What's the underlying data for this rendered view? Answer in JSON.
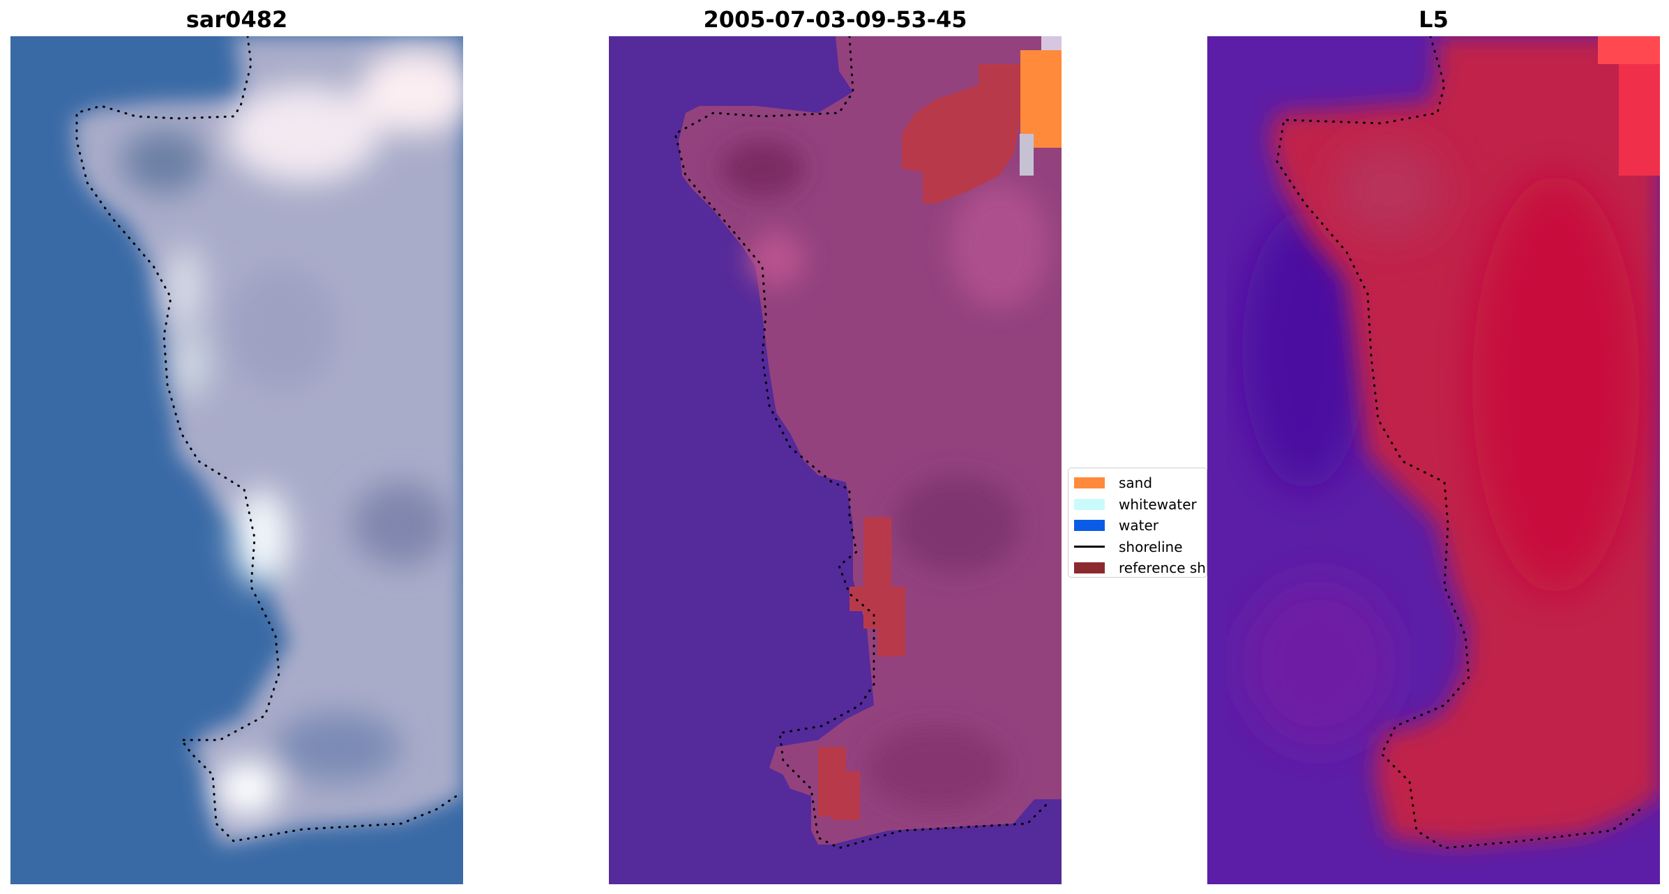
{
  "panels": [
    {
      "title": "sar0482",
      "kind": "rgb"
    },
    {
      "title": "2005-07-03-09-53-45",
      "kind": "classified"
    },
    {
      "title": "L5",
      "kind": "index"
    }
  ],
  "colors": {
    "deep_water": "#3a6aa6",
    "land_rgb": "#a9acc9",
    "classified_water": "#552a9a",
    "classified_land": "#93427e",
    "index_water": "#5c1ea6",
    "index_land": "#c0204a",
    "shoreline_dots": "#000000"
  },
  "legend": {
    "items": [
      {
        "label": "sand",
        "color": "#ff8a3c",
        "type": "patch"
      },
      {
        "label": "whitewater",
        "color": "#c9fbfb",
        "type": "patch"
      },
      {
        "label": "water",
        "color": "#0a5ce6",
        "type": "patch"
      },
      {
        "label": "shoreline",
        "color": "#000000",
        "type": "line"
      },
      {
        "label": "reference shoreline",
        "color": "#8b2a2e",
        "type": "patch"
      }
    ]
  }
}
